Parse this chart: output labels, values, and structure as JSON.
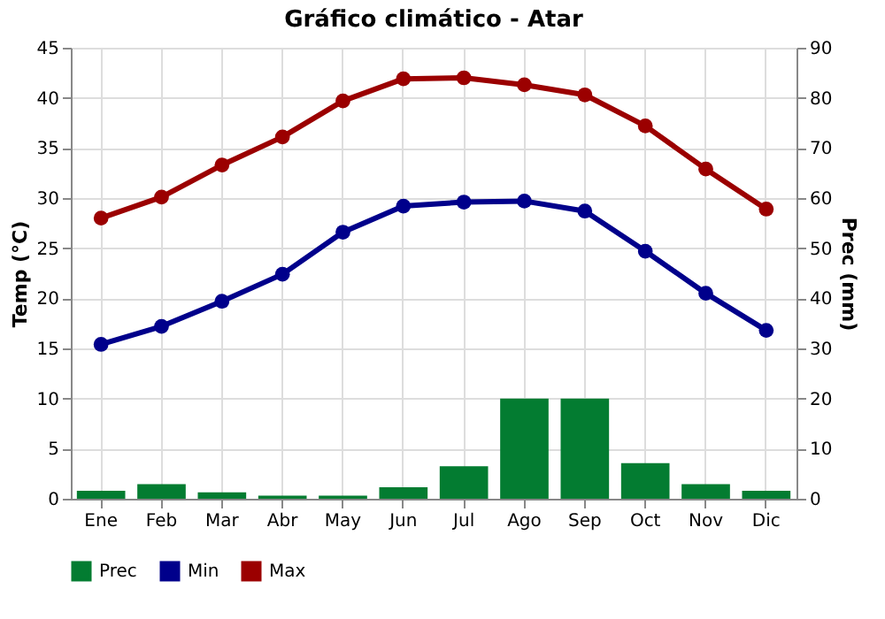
{
  "chart_data": {
    "type": "line",
    "title": "Gráfico climático - Atar",
    "ylabel": "Temp (°C)",
    "y2label": "Prec (mm)",
    "categories": [
      "Ene",
      "Feb",
      "Mar",
      "Abr",
      "May",
      "Jun",
      "Jul",
      "Ago",
      "Sep",
      "Oct",
      "Nov",
      "Dic"
    ],
    "series": [
      {
        "name": "Prec",
        "type": "bar",
        "axis": "y2",
        "color": "#037c31",
        "values": [
          1.6,
          2.9,
          1.3,
          0.6,
          0.6,
          2.3,
          6.5,
          20,
          20,
          7.1,
          2.9,
          1.6
        ]
      },
      {
        "name": "Min",
        "color": "#00008b",
        "values": [
          15.4,
          17.2,
          19.7,
          22.4,
          26.6,
          29.2,
          29.6,
          29.7,
          28.7,
          24.7,
          20.5,
          16.8
        ]
      },
      {
        "name": "Max",
        "color": "#9b0000",
        "values": [
          28.0,
          30.1,
          33.3,
          36.1,
          39.7,
          41.9,
          42.0,
          41.3,
          40.3,
          37.2,
          32.9,
          28.9
        ]
      }
    ],
    "ylim": [
      0,
      45
    ],
    "yticks": [
      0,
      5,
      10,
      15,
      20,
      25,
      30,
      35,
      40,
      45
    ],
    "y2lim": [
      0,
      90
    ],
    "y2ticks": [
      0,
      10,
      20,
      30,
      40,
      50,
      60,
      70,
      80,
      90
    ],
    "grid": true,
    "legend": "bottom",
    "marker": "circle",
    "line_style": "solid"
  }
}
